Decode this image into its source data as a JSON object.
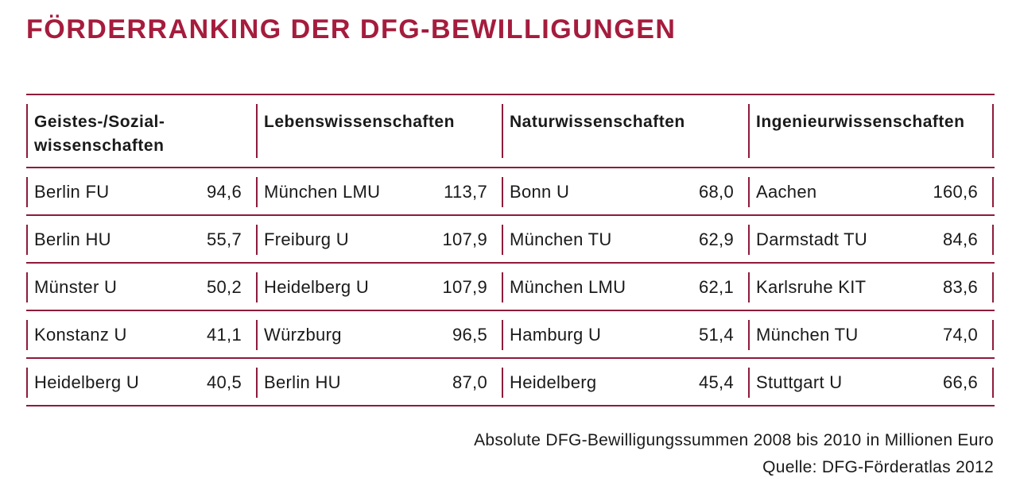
{
  "title": "FÖRDERRANKING DER DFG-BEWILLIGUNGEN",
  "columns": [
    {
      "header": [
        "Geistes-/Sozial-",
        "wissenschaften"
      ],
      "rows": [
        [
          "Berlin FU",
          "94,6"
        ],
        [
          "Berlin HU",
          "55,7"
        ],
        [
          "Münster U",
          "50,2"
        ],
        [
          "Konstanz U",
          "41,1"
        ],
        [
          "Heidelberg U",
          "40,5"
        ]
      ]
    },
    {
      "header": [
        "Lebenswissenschaften",
        ""
      ],
      "rows": [
        [
          "München LMU",
          "113,7"
        ],
        [
          "Freiburg U",
          "107,9"
        ],
        [
          "Heidelberg U",
          "107,9"
        ],
        [
          "Würzburg",
          "96,5"
        ],
        [
          "Berlin HU",
          "87,0"
        ]
      ]
    },
    {
      "header": [
        "Naturwissenschaften",
        ""
      ],
      "rows": [
        [
          "Bonn U",
          "68,0"
        ],
        [
          "München TU",
          "62,9"
        ],
        [
          "München LMU",
          "62,1"
        ],
        [
          "Hamburg U",
          "51,4"
        ],
        [
          "Heidelberg",
          "45,4"
        ]
      ]
    },
    {
      "header": [
        "Ingenieurwissenschaften",
        ""
      ],
      "rows": [
        [
          "Aachen",
          "160,6"
        ],
        [
          "Darmstadt TU",
          "84,6"
        ],
        [
          "Karlsruhe KIT",
          "83,6"
        ],
        [
          "München TU",
          "74,0"
        ],
        [
          "Stuttgart U",
          "66,6"
        ]
      ]
    }
  ],
  "footer": {
    "note": "Absolute DFG-Bewilligungssummen 2008 bis 2010 in Millionen Euro",
    "source": "Quelle: DFG-Förderatlas 2012"
  },
  "colors": {
    "accent": "#a51c3d",
    "rule": "#8e1b3b"
  }
}
